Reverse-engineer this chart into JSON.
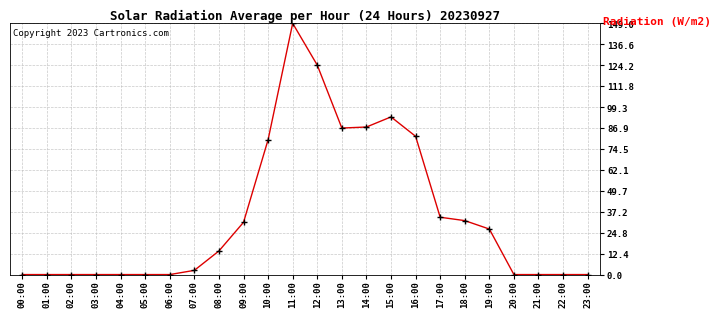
{
  "title": "Solar Radiation Average per Hour (24 Hours) 20230927",
  "copyright_text": "Copyright 2023 Cartronics.com",
  "ylabel": "Radiation (W/m2)",
  "line_color": "#dd0000",
  "marker_color": "#000000",
  "background_color": "#ffffff",
  "grid_color": "#bbbbbb",
  "hours": [
    0,
    1,
    2,
    3,
    4,
    5,
    6,
    7,
    8,
    9,
    10,
    11,
    12,
    13,
    14,
    15,
    16,
    17,
    18,
    19,
    20,
    21,
    22,
    23
  ],
  "values": [
    0.0,
    0.0,
    0.0,
    0.0,
    0.0,
    0.0,
    0.0,
    2.5,
    14.0,
    31.0,
    80.0,
    149.0,
    124.2,
    86.9,
    87.5,
    93.5,
    82.0,
    34.0,
    32.0,
    27.0,
    0.0,
    0.0,
    0.0,
    0.0
  ],
  "yticks": [
    0.0,
    12.4,
    24.8,
    37.2,
    49.7,
    62.1,
    74.5,
    86.9,
    99.3,
    111.8,
    124.2,
    136.6,
    149.0
  ],
  "ylim": [
    0.0,
    149.0
  ],
  "xlim_min": -0.5,
  "xlim_max": 23.5,
  "title_fontsize": 9,
  "copyright_fontsize": 6.5,
  "tick_fontsize": 6.5,
  "ylabel_fontsize": 8
}
